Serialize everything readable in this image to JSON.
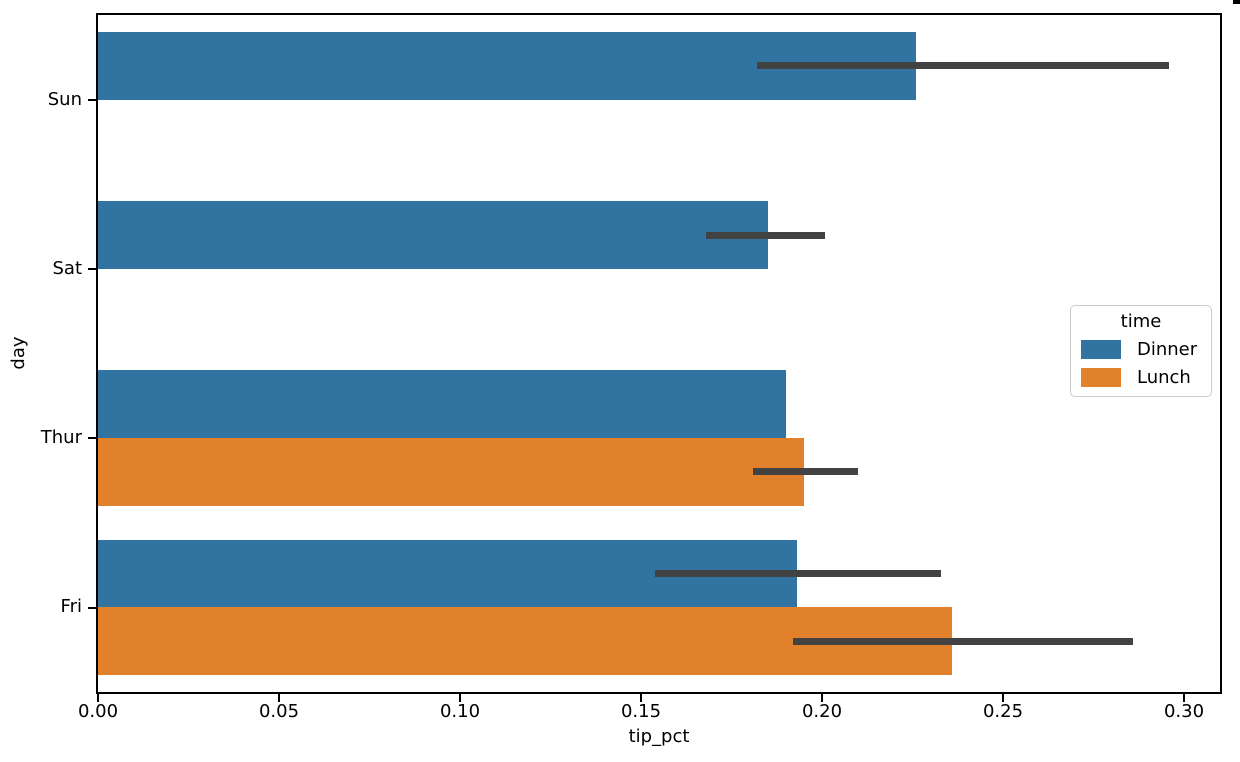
{
  "chart_data": {
    "type": "bar",
    "orientation": "horizontal",
    "xlabel": "tip_pct",
    "ylabel": "day",
    "xlim": [
      0,
      0.31
    ],
    "grid": false,
    "categories": [
      "Sun",
      "Sat",
      "Thur",
      "Fri"
    ],
    "x_ticks": [
      {
        "value": 0.0,
        "label": "0.00"
      },
      {
        "value": 0.05,
        "label": "0.05"
      },
      {
        "value": 0.1,
        "label": "0.10"
      },
      {
        "value": 0.15,
        "label": "0.15"
      },
      {
        "value": 0.2,
        "label": "0.20"
      },
      {
        "value": 0.25,
        "label": "0.25"
      },
      {
        "value": 0.3,
        "label": "0.30"
      }
    ],
    "legend": {
      "title": "time",
      "position": "center-right",
      "entries": [
        {
          "label": "Dinner",
          "color": "#3274A1"
        },
        {
          "label": "Lunch",
          "color": "#E1812C"
        }
      ]
    },
    "series": [
      {
        "name": "Dinner",
        "color": "#3274A1",
        "values": [
          0.226,
          0.185,
          0.19,
          0.193
        ]
      },
      {
        "name": "Lunch",
        "color": "#E1812C",
        "values": [
          null,
          null,
          0.195,
          0.236
        ]
      }
    ],
    "bars": [
      {
        "day": "Sun",
        "time": "Dinner",
        "value": 0.226,
        "ci_low": 0.182,
        "ci_high": 0.296
      },
      {
        "day": "Sat",
        "time": "Dinner",
        "value": 0.185,
        "ci_low": 0.168,
        "ci_high": 0.201
      },
      {
        "day": "Thur",
        "time": "Dinner",
        "value": 0.19,
        "ci_low": null,
        "ci_high": null
      },
      {
        "day": "Thur",
        "time": "Lunch",
        "value": 0.195,
        "ci_low": 0.181,
        "ci_high": 0.21
      },
      {
        "day": "Fri",
        "time": "Dinner",
        "value": 0.193,
        "ci_low": 0.154,
        "ci_high": 0.233
      },
      {
        "day": "Fri",
        "time": "Lunch",
        "value": 0.236,
        "ci_low": 0.192,
        "ci_high": 0.286
      }
    ],
    "error_bar_color": "#424242"
  }
}
